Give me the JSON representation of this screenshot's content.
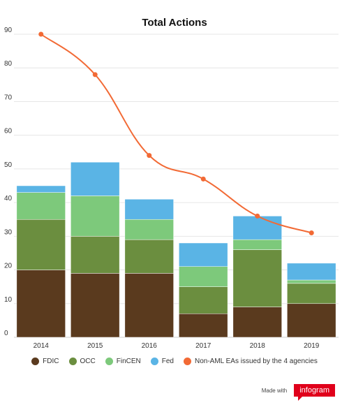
{
  "chart_data": {
    "type": "bar",
    "title": "Total Actions",
    "categories": [
      "2014",
      "2015",
      "2016",
      "2017",
      "2018",
      "2019"
    ],
    "stacked": true,
    "ylim": [
      0,
      90
    ],
    "yticks": [
      0,
      10,
      20,
      30,
      40,
      50,
      60,
      70,
      80,
      90
    ],
    "grid": true,
    "series": [
      {
        "name": "FDIC",
        "color": "#5a3a1e",
        "values": [
          20,
          19,
          19,
          7,
          9,
          10
        ]
      },
      {
        "name": "OCC",
        "color": "#6b8e3f",
        "values": [
          15,
          11,
          10,
          8,
          17,
          6
        ]
      },
      {
        "name": "FinCEN",
        "color": "#7dc97b",
        "values": [
          8,
          12,
          6,
          6,
          3,
          1
        ]
      },
      {
        "name": "Fed",
        "color": "#5ab4e5",
        "values": [
          2,
          10,
          6,
          7,
          7,
          5
        ]
      }
    ],
    "line_series": {
      "name": "Non-AML EAs issued by the 4 agencies",
      "color": "#f26a35",
      "values": [
        90,
        78,
        54,
        47,
        36,
        31
      ]
    },
    "legend_position": "bottom"
  },
  "footer": {
    "made_with": "Made with",
    "brand": "infogram"
  }
}
